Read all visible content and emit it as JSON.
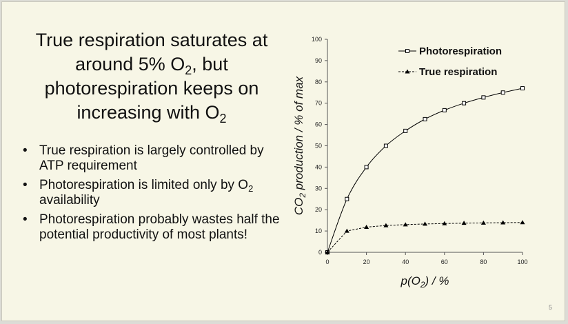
{
  "title": {
    "line1": "True respiration saturates at",
    "line2_pre": "around 5% O",
    "line2_sub": "2",
    "line2_post": ", but",
    "line3": "photorespiration keeps on",
    "line4_pre": "increasing with O",
    "line4_sub": "2"
  },
  "bullets": [
    {
      "pre": "True respiration is largely controlled by ATP requirement",
      "sub": "",
      "post": ""
    },
    {
      "pre": "Photorespiration is limited only by O",
      "sub": "2",
      "post": " availability"
    },
    {
      "pre": "Photorespiration probably wastes half the potential productivity of most plants!",
      "sub": "",
      "post": ""
    }
  ],
  "bullet_symbol": "•",
  "page_number": "5",
  "chart_data": {
    "type": "line",
    "x": [
      0,
      10,
      20,
      30,
      40,
      50,
      60,
      70,
      80,
      90,
      100
    ],
    "series": [
      {
        "name": "Photorespiration",
        "values": [
          0,
          25,
          40,
          50,
          57,
          62.5,
          66.7,
          70,
          72.7,
          75,
          77
        ],
        "marker": "open-square",
        "line": "solid"
      },
      {
        "name": "True respiration",
        "values": [
          0,
          10,
          11.8,
          12.6,
          13,
          13.3,
          13.5,
          13.7,
          13.8,
          13.9,
          14
        ],
        "marker": "filled-triangle",
        "line": "dashed"
      }
    ],
    "xlabel_pre": "p(O",
    "xlabel_sub": "2",
    "xlabel_post": ") / %",
    "ylabel_pre": "CO",
    "ylabel_sub": "2",
    "ylabel_post": " production / % of max",
    "xlim": [
      0,
      100
    ],
    "ylim": [
      0,
      100
    ],
    "xticks": [
      "0",
      "20",
      "40",
      "60",
      "80",
      "100"
    ],
    "yticks": [
      "0",
      "10",
      "20",
      "30",
      "40",
      "50",
      "60",
      "70",
      "80",
      "90",
      "100"
    ],
    "legend_position": "top-right",
    "grid": false
  },
  "colors": {
    "slide_bg": "#f7f6e6",
    "text": "#111111",
    "line": "#000000"
  }
}
